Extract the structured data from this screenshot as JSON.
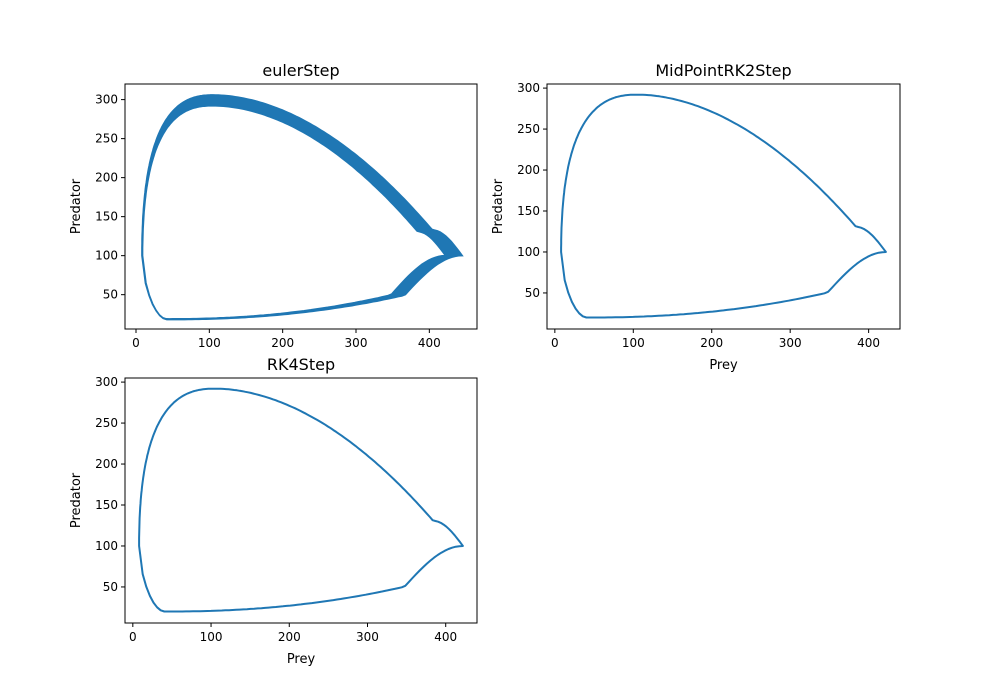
{
  "chart_data": [
    {
      "type": "line",
      "title": "eulerStep",
      "xlabel": "",
      "ylabel": "Predator",
      "xlim": [
        -15,
        465
      ],
      "ylim": [
        6,
        320
      ],
      "xticks": [
        0,
        100,
        200,
        300,
        400
      ],
      "yticks": [
        50,
        100,
        150,
        200,
        250,
        300
      ],
      "grid": false,
      "color": "#1f77b4",
      "orbit": {
        "prey_min": 8,
        "prey_max": 445,
        "prey_at_pred_max": 105,
        "pred_min": 18,
        "pred_max": 306,
        "pred_at_prey_max": 100,
        "band_inner_prey_max": 422,
        "band_inner_pred_max": 292
      }
    },
    {
      "type": "line",
      "title": "MidPointRK2Step",
      "xlabel": "Prey",
      "ylabel": "Predator",
      "xlim": [
        -10,
        440
      ],
      "ylim": [
        6,
        305
      ],
      "xticks": [
        0,
        100,
        200,
        300,
        400
      ],
      "yticks": [
        50,
        100,
        150,
        200,
        250,
        300
      ],
      "grid": false,
      "color": "#1f77b4",
      "orbit": {
        "prey_min": 8,
        "prey_max": 422,
        "prey_at_pred_max": 105,
        "pred_min": 20,
        "pred_max": 292,
        "pred_at_prey_max": 100
      }
    },
    {
      "type": "line",
      "title": "RK4Step",
      "xlabel": "Prey",
      "ylabel": "Predator",
      "xlim": [
        -10,
        440
      ],
      "ylim": [
        6,
        305
      ],
      "xticks": [
        0,
        100,
        200,
        300,
        400
      ],
      "yticks": [
        50,
        100,
        150,
        200,
        250,
        300
      ],
      "grid": false,
      "color": "#1f77b4",
      "orbit": {
        "prey_min": 8,
        "prey_max": 422,
        "prey_at_pred_max": 105,
        "pred_min": 20,
        "pred_max": 292,
        "pred_at_prey_max": 100
      }
    }
  ]
}
